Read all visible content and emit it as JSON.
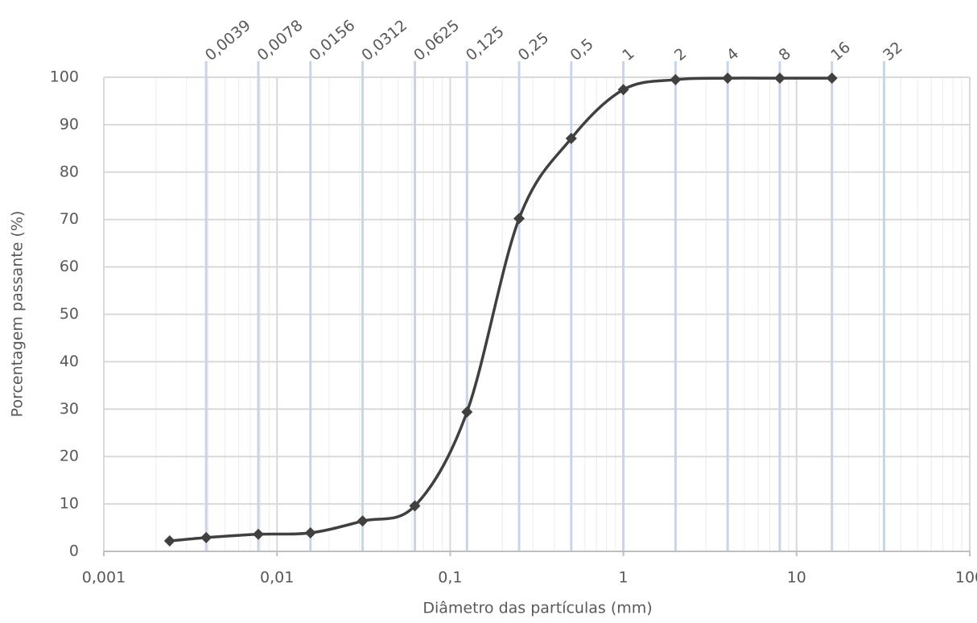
{
  "chart_data": {
    "type": "line",
    "x_label": "Diâmetro das partículas (mm)",
    "y_label": "Porcentagem passante (%)",
    "x": [
      0.0024,
      0.0039,
      0.0078,
      0.0156,
      0.0312,
      0.0625,
      0.125,
      0.25,
      0.5,
      1,
      2,
      4,
      8,
      16
    ],
    "series": [
      {
        "color": "#404040",
        "values": [
          2.2,
          2.9,
          3.6,
          3.9,
          6.4,
          9.6,
          29.4,
          70.2,
          87.1,
          97.4,
          99.5,
          99.8,
          99.8,
          99.8
        ]
      }
    ],
    "xlog": true,
    "smooth": true,
    "marker": "diamond",
    "xlim": [
      0.001,
      100
    ],
    "ylim": [
      0,
      100
    ],
    "xticks": [
      {
        "value": 0.001,
        "label": "0,001"
      },
      {
        "value": 0.01,
        "label": "0,01"
      },
      {
        "value": 0.1,
        "label": "0,1"
      },
      1,
      10,
      100
    ],
    "yticks": [
      0,
      10,
      20,
      30,
      40,
      50,
      60,
      70,
      80,
      90,
      100
    ],
    "x2ticks": [
      {
        "value": 0.0039,
        "label": "0,0039"
      },
      {
        "value": 0.0078,
        "label": "0,0078"
      },
      {
        "value": 0.0156,
        "label": "0,0156"
      },
      {
        "value": 0.0312,
        "label": "0,0312"
      },
      {
        "value": 0.0625,
        "label": "0,0625"
      },
      {
        "value": 0.125,
        "label": "0,125"
      },
      {
        "value": 0.25,
        "label": "0,25"
      },
      {
        "value": 0.5,
        "label": "0,5"
      },
      1,
      2,
      4,
      8,
      16,
      32
    ],
    "grid": true,
    "minor_grid": true
  }
}
